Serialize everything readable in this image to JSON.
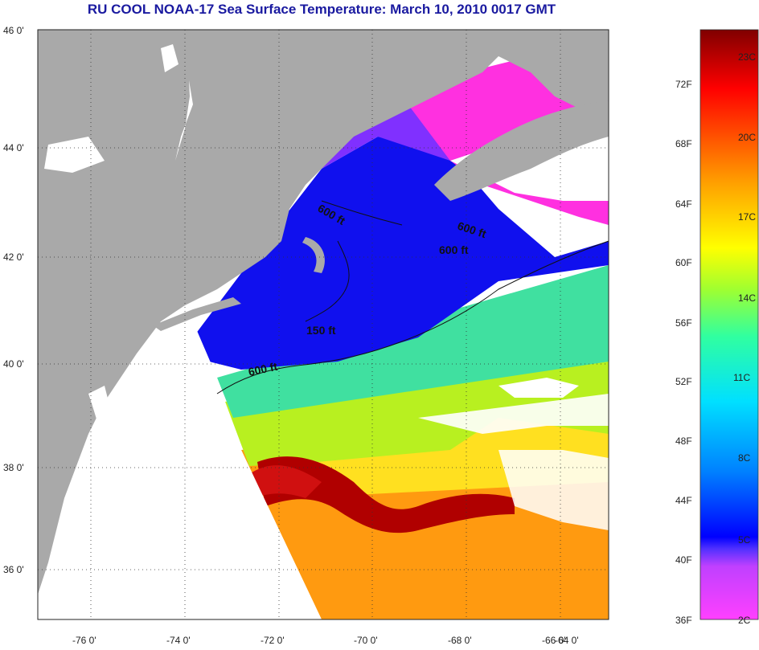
{
  "title": "RU COOL  NOAA-17  Sea Surface Temperature:  March 10, 2010 0017 GMT",
  "y_ticks": [
    "46 0'",
    "44 0'",
    "42 0'",
    "40 0'",
    "38 0'",
    "36 0'"
  ],
  "x_ticks": [
    "-76 0'",
    "-74 0'",
    "-72 0'",
    "-70 0'",
    "-68 0'",
    "-66 0'",
    "-64 0'"
  ],
  "contour_labels": [
    "600 ft",
    "600 ft",
    "600 ft",
    "150 ft",
    "600 ft"
  ],
  "colorbar": {
    "fahrenheit": [
      "72F",
      "68F",
      "64F",
      "60F",
      "56F",
      "52F",
      "48F",
      "44F",
      "40F",
      "36F"
    ],
    "celsius": [
      "23C",
      "20C",
      "17C",
      "14C",
      "11C",
      "8C",
      "5C",
      "2C"
    ]
  },
  "colors": {
    "land": "#a9a9a9",
    "no_data": "#ffffff",
    "title": "#1a1aa0"
  }
}
